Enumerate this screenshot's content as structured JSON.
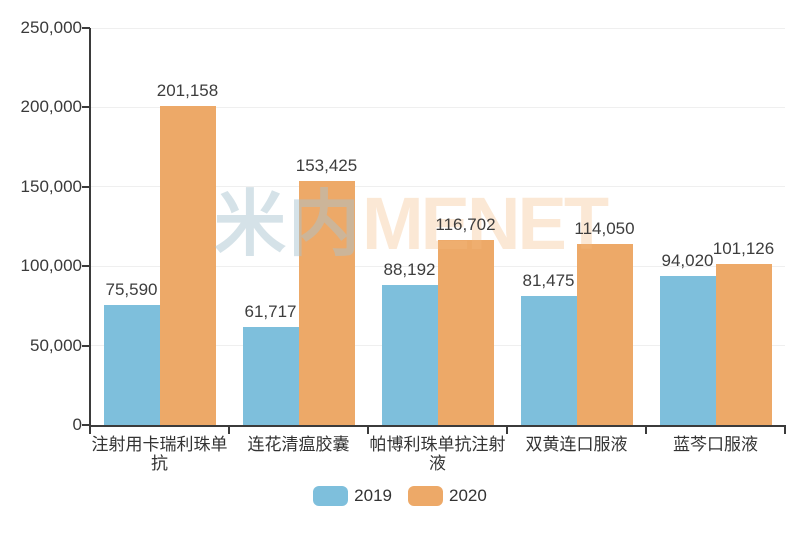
{
  "chart_data": {
    "type": "bar",
    "title": "",
    "categories": [
      "注射用卡瑞利珠单抗",
      "连花清瘟胶囊",
      "帕博利珠单抗注射液",
      "双黄连口服液",
      "蓝芩口服液"
    ],
    "series": [
      {
        "name": "2019",
        "color": "#7EBFDC",
        "values": [
          75590,
          61717,
          88192,
          81475,
          94020
        ]
      },
      {
        "name": "2020",
        "color": "#EDA968",
        "values": [
          201158,
          153425,
          116702,
          114050,
          101126
        ]
      }
    ],
    "value_labels": [
      "75,590",
      "201,158",
      "61,717",
      "153,425",
      "88,192",
      "116,702",
      "81,475",
      "114,050",
      "94,020",
      "101,126"
    ],
    "xlabel": "",
    "ylabel": "",
    "ylim": [
      0,
      250000
    ],
    "ytick_step": 50000,
    "ytick_labels": [
      "0",
      "50,000",
      "100,000",
      "150,000",
      "200,000",
      "250,000"
    ],
    "grid": true,
    "legend_position": "bottom",
    "legend_entries": [
      "2019",
      "2020"
    ]
  },
  "watermark": {
    "cjk": "米内",
    "latin": "MENET"
  },
  "colors": {
    "series_2019": "#7EBFDC",
    "series_2020": "#EDA968",
    "axis": "#3B3B3B",
    "gridline": "#EFEFEF",
    "text": "#333333",
    "background": "#FFFFFF"
  }
}
